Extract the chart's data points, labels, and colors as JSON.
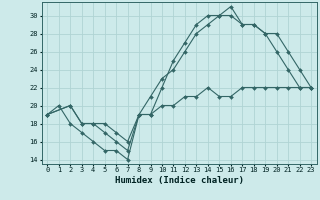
{
  "xlabel": "Humidex (Indice chaleur)",
  "bg_color": "#cdeaea",
  "line_color": "#336666",
  "grid_color": "#b0d4d4",
  "xlim": [
    -0.5,
    23.5
  ],
  "ylim": [
    13.5,
    31.5
  ],
  "xticks": [
    0,
    1,
    2,
    3,
    4,
    5,
    6,
    7,
    8,
    9,
    10,
    11,
    12,
    13,
    14,
    15,
    16,
    17,
    18,
    19,
    20,
    21,
    22,
    23
  ],
  "yticks": [
    14,
    16,
    18,
    20,
    22,
    24,
    26,
    28,
    30
  ],
  "line1_x": [
    0,
    1,
    2,
    3,
    4,
    5,
    6,
    7,
    8,
    9,
    10,
    11,
    12,
    13,
    14,
    15,
    16,
    17,
    18,
    19,
    20,
    21,
    22,
    23
  ],
  "line1_y": [
    19,
    20,
    18,
    17,
    16,
    15,
    15,
    14,
    19,
    19,
    22,
    25,
    27,
    29,
    30,
    30,
    31,
    29,
    29,
    28,
    26,
    24,
    22,
    22
  ],
  "line2_x": [
    0,
    2,
    3,
    4,
    5,
    6,
    7,
    8,
    9,
    10,
    11,
    12,
    13,
    14,
    15,
    16,
    17,
    18,
    19,
    20,
    21,
    22,
    23
  ],
  "line2_y": [
    19,
    20,
    18,
    18,
    17,
    16,
    15,
    19,
    21,
    23,
    24,
    26,
    28,
    29,
    30,
    30,
    29,
    29,
    28,
    28,
    26,
    24,
    22
  ],
  "line3_x": [
    0,
    2,
    3,
    4,
    5,
    6,
    7,
    8,
    9,
    10,
    11,
    12,
    13,
    14,
    15,
    16,
    17,
    18,
    19,
    20,
    21,
    22,
    23
  ],
  "line3_y": [
    19,
    20,
    18,
    18,
    18,
    17,
    16,
    19,
    19,
    20,
    20,
    21,
    21,
    22,
    21,
    21,
    22,
    22,
    22,
    22,
    22,
    22,
    22
  ]
}
